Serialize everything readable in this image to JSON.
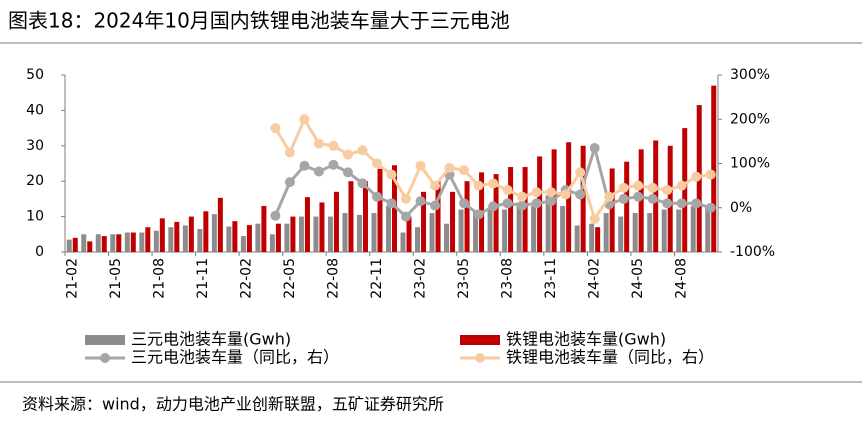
{
  "chart_data": {
    "type": "bar_line",
    "title": "图表18：2024年10月国内铁锂电池装车量大于三元电池",
    "source": "资料来源：wind，动力电池产业创新联盟，五矿证券研究所",
    "categories": [
      "21-02",
      null,
      null,
      "21-05",
      null,
      null,
      "21-08",
      null,
      null,
      "21-11",
      null,
      null,
      "22-02",
      null,
      null,
      "22-05",
      null,
      null,
      "22-08",
      null,
      null,
      "22-11",
      null,
      null,
      "23-02",
      null,
      null,
      "23-05",
      null,
      null,
      "23-08",
      null,
      null,
      "23-11",
      null,
      null,
      "24-02",
      null,
      null,
      "24-05",
      null,
      null,
      "24-08",
      null,
      null
    ],
    "ylim": [
      0,
      50
    ],
    "yticks": [
      0,
      10,
      20,
      30,
      40,
      50
    ],
    "y2lim": [
      -100,
      300
    ],
    "y2ticks": [
      {
        "value": -100,
        "label": "-100%"
      },
      {
        "value": 0,
        "label": "0%"
      },
      {
        "value": 100,
        "label": "100%"
      },
      {
        "value": 200,
        "label": "200%"
      },
      {
        "value": 300,
        "label": "300%"
      }
    ],
    "series": [
      {
        "name": "三元电池装车量(Gwh)",
        "kind": "bar",
        "color": "#8c8c8c",
        "values": [
          3.5,
          5,
          5,
          5,
          5.5,
          5.5,
          6,
          7,
          7.5,
          6.5,
          10.7,
          7.2,
          4.5,
          8,
          5,
          8,
          10,
          10,
          10,
          11,
          10.5,
          11,
          13,
          5.5,
          7,
          11,
          8,
          12,
          11.5,
          12,
          12,
          14,
          13,
          16,
          13,
          7.5,
          8,
          11,
          10,
          11,
          11,
          12,
          12,
          13,
          13
        ]
      },
      {
        "name": "铁锂电池装车量(Gwh)",
        "kind": "bar",
        "color": "#c00000",
        "values": [
          4,
          3,
          4.5,
          5,
          5.5,
          7,
          9.5,
          8.5,
          10,
          11.5,
          15.3,
          8.7,
          7.6,
          13,
          8,
          10,
          15.5,
          14,
          17,
          20,
          20,
          23.5,
          24.5,
          10,
          17,
          20,
          17,
          20,
          22.5,
          22,
          24,
          24,
          27,
          29,
          31,
          30,
          7,
          23.6,
          25.5,
          29,
          31.5,
          30,
          35,
          41.5,
          47
        ]
      },
      {
        "name": "三元电池装车量（同比，右）",
        "kind": "line",
        "axis": "y2",
        "color": "#a6a6a6",
        "values": [
          null,
          null,
          null,
          null,
          null,
          null,
          null,
          null,
          null,
          null,
          null,
          null,
          null,
          null,
          -18,
          58,
          95,
          82,
          97,
          80,
          55,
          25,
          10,
          -20,
          15,
          5,
          75,
          10,
          -15,
          3,
          10,
          5,
          10,
          15,
          40,
          30,
          135,
          8,
          20,
          25,
          20,
          10,
          10,
          10,
          0
        ]
      },
      {
        "name": "铁锂电池装车量（同比，右）",
        "kind": "line",
        "axis": "y2",
        "color": "#f8cba0",
        "values": [
          null,
          null,
          null,
          null,
          null,
          null,
          null,
          null,
          null,
          null,
          null,
          null,
          null,
          null,
          180,
          125,
          200,
          145,
          140,
          120,
          130,
          100,
          75,
          20,
          95,
          50,
          90,
          85,
          50,
          55,
          40,
          25,
          35,
          35,
          30,
          80,
          -25,
          25,
          45,
          50,
          45,
          40,
          50,
          70,
          75
        ]
      }
    ]
  }
}
